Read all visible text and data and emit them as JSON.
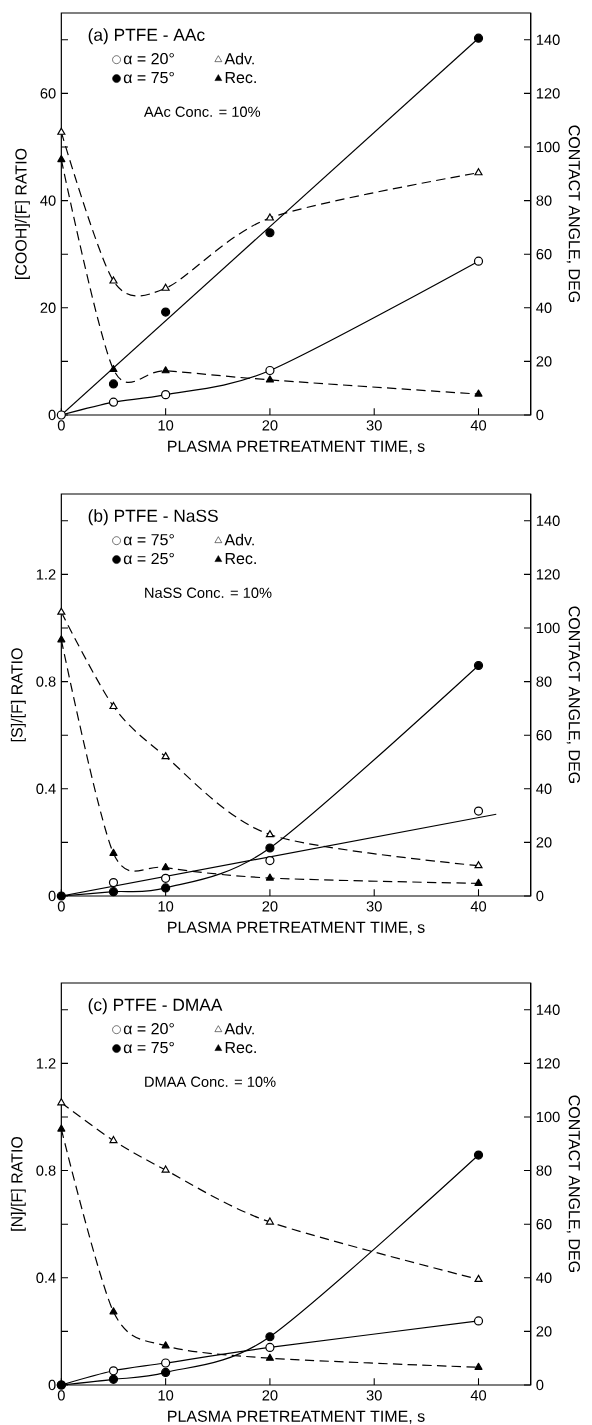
{
  "chart_data": [
    {
      "type": "line",
      "title": "(a) PTFE - AAc",
      "xlabel": "PLASMA PRETREATMENT TIME, s",
      "ylabel": "[COOH]/[F] RATIO",
      "y2label": "CONTACT ANGLE, DEG",
      "annotations": [
        "AAc Conc. = 10%"
      ],
      "legend": "top left",
      "xlim": [
        0,
        45
      ],
      "xticks": [
        0,
        10,
        20,
        30,
        40
      ],
      "ylim": [
        0,
        75
      ],
      "yticks": [
        0,
        {
          "value": 10,
          "label": null
        },
        20,
        {
          "value": 30,
          "label": null
        },
        40,
        {
          "value": 50,
          "label": null
        },
        60,
        {
          "value": 70,
          "label": null
        }
      ],
      "y2lim": [
        0,
        150
      ],
      "y2ticks": [
        0,
        20,
        40,
        60,
        80,
        100,
        120,
        140
      ],
      "series": [
        {
          "name": "α = 20°",
          "axis": "y",
          "marker": "circle",
          "line_style": "solid",
          "color": "#000000",
          "colors": [
            "#ffffff",
            "#ffffff",
            "#ffffff",
            "#ffffff",
            "#ffffff"
          ],
          "x": [
            0,
            5,
            10,
            20,
            40
          ],
          "values": [
            0,
            2.4,
            3.8,
            8.3,
            28.7
          ]
        },
        {
          "name": "Adv.",
          "axis": "y2",
          "marker": "triangle",
          "line_style": "dashed",
          "color": "#000000",
          "colors": [
            "#ffffff",
            "#ffffff",
            "#ffffff",
            "#ffffff",
            "#ffffff"
          ],
          "x": [
            0,
            5,
            10,
            20,
            40
          ],
          "values": [
            105.5,
            50,
            47.3,
            73.5,
            90.4
          ]
        },
        {
          "name": "α = 75°",
          "type": "scatter",
          "axis": "y",
          "marker": "circle",
          "color": "#000000",
          "x": [
            5,
            10,
            20,
            40
          ],
          "values": [
            5.8,
            19.2,
            34.0,
            70.3
          ]
        },
        {
          "name": "Rec.",
          "axis": "y2",
          "marker": "triangle",
          "line_style": "dashed",
          "color": "#000000",
          "x": [
            0,
            5,
            10,
            20,
            40
          ],
          "values": [
            95.3,
            17,
            16.5,
            13.1,
            7.8
          ]
        },
        {
          "axis": "y",
          "marker": "none",
          "line_style": "solid",
          "color": "#000000",
          "x": [
            0,
            40
          ],
          "values": [
            0,
            70.3
          ]
        }
      ]
    },
    {
      "type": "line",
      "title": "(b) PTFE - NaSS",
      "xlabel": "PLASMA PRETREATMENT TIME, s",
      "ylabel": "[S]/[F] RATIO",
      "y2label": "CONTACT ANGLE, DEG",
      "annotations": [
        "NaSS Conc. = 10%"
      ],
      "legend": "top left",
      "xlim": [
        0,
        45
      ],
      "xticks": [
        0,
        10,
        20,
        30,
        40
      ],
      "ylim": [
        0,
        1.5
      ],
      "yticks": [
        0,
        {
          "value": 0.2,
          "label": null
        },
        0.4,
        {
          "value": 0.6,
          "label": null
        },
        0.8,
        {
          "value": 1.0,
          "label": null
        },
        1.2,
        {
          "value": 1.4,
          "label": null
        }
      ],
      "y2lim": [
        0,
        150
      ],
      "y2ticks": [
        0,
        20,
        40,
        60,
        80,
        100,
        120,
        140
      ],
      "series": [
        {
          "name": "α = 75°",
          "type": "scatter",
          "axis": "y",
          "marker": "circle",
          "color": "#000000",
          "colors": [
            "#ffffff",
            "#ffffff",
            "#ffffff",
            "#ffffff"
          ],
          "x": [
            5,
            10,
            20,
            40
          ],
          "values": [
            0.05,
            0.066,
            0.132,
            0.317
          ]
        },
        {
          "name": "Adv.",
          "axis": "y2",
          "marker": "triangle",
          "line_style": "dashed",
          "color": "#000000",
          "colors": [
            "#ffffff",
            "#ffffff",
            "#ffffff",
            "#ffffff",
            "#ffffff"
          ],
          "x": [
            0,
            5,
            10,
            20,
            40
          ],
          "values": [
            105.9,
            70.7,
            52,
            22.9,
            11.3
          ]
        },
        {
          "name": "α = 25°",
          "axis": "y",
          "marker": "circle",
          "line_style": "solid",
          "color": "#000000",
          "x": [
            0,
            5,
            10,
            20,
            40
          ],
          "values": [
            0,
            0.016,
            0.03,
            0.179,
            0.86
          ]
        },
        {
          "name": "Rec.",
          "axis": "y2",
          "marker": "triangle",
          "line_style": "dashed",
          "color": "#000000",
          "x": [
            0,
            5,
            10,
            20,
            40
          ],
          "values": [
            95.6,
            15.9,
            10.6,
            6.7,
            4.7
          ]
        },
        {
          "axis": "y",
          "marker": "none",
          "line_style": "solid",
          "color": "#000000",
          "x": [
            0,
            41.7
          ],
          "values": [
            0,
            0.305
          ]
        }
      ]
    },
    {
      "type": "line",
      "title": "(c) PTFE - DMAA",
      "xlabel": "PLASMA PRETREATMENT TIME, s",
      "ylabel": "[N]/[F] RATIO",
      "y2label": "CONTACT ANGLE, DEG",
      "annotations": [
        "DMAA Conc. = 10%"
      ],
      "legend": "top left",
      "xlim": [
        0,
        45
      ],
      "xticks": [
        0,
        10,
        20,
        30,
        40
      ],
      "ylim": [
        0,
        1.5
      ],
      "yticks": [
        0,
        {
          "value": 0.2,
          "label": null
        },
        0.4,
        {
          "value": 0.6,
          "label": null
        },
        0.8,
        {
          "value": 1.0,
          "label": null
        },
        1.2,
        {
          "value": 1.4,
          "label": null
        }
      ],
      "y2lim": [
        0,
        150
      ],
      "y2ticks": [
        0,
        20,
        40,
        60,
        80,
        100,
        120,
        140
      ],
      "series": [
        {
          "name": "α = 20°",
          "axis": "y",
          "marker": "circle",
          "line_style": "solid",
          "color": "#000000",
          "colors": [
            "#ffffff",
            "#ffffff",
            "#ffffff",
            "#ffffff",
            "#ffffff"
          ],
          "x": [
            0,
            5,
            10,
            20,
            40
          ],
          "values": [
            0,
            0.053,
            0.082,
            0.14,
            0.239
          ]
        },
        {
          "name": "Adv.",
          "axis": "y2",
          "marker": "triangle",
          "line_style": "dashed",
          "color": "#000000",
          "colors": [
            "#ffffff",
            "#ffffff",
            "#ffffff",
            "#ffffff",
            "#ffffff"
          ],
          "x": [
            0,
            5,
            10,
            20,
            40
          ],
          "values": [
            105.3,
            91.2,
            80.2,
            60.8,
            39.4
          ]
        },
        {
          "name": "α = 75°",
          "axis": "y",
          "marker": "circle",
          "line_style": "solid",
          "color": "#000000",
          "x": [
            0,
            5,
            10,
            20,
            40
          ],
          "values": [
            0,
            0.021,
            0.047,
            0.18,
            0.858
          ]
        },
        {
          "name": "Rec.",
          "axis": "y2",
          "marker": "triangle",
          "line_style": "dashed",
          "color": "#000000",
          "x": [
            0,
            5,
            10,
            20,
            40
          ],
          "values": [
            95.5,
            27.3,
            14.6,
            10,
            6.6
          ]
        }
      ]
    }
  ]
}
